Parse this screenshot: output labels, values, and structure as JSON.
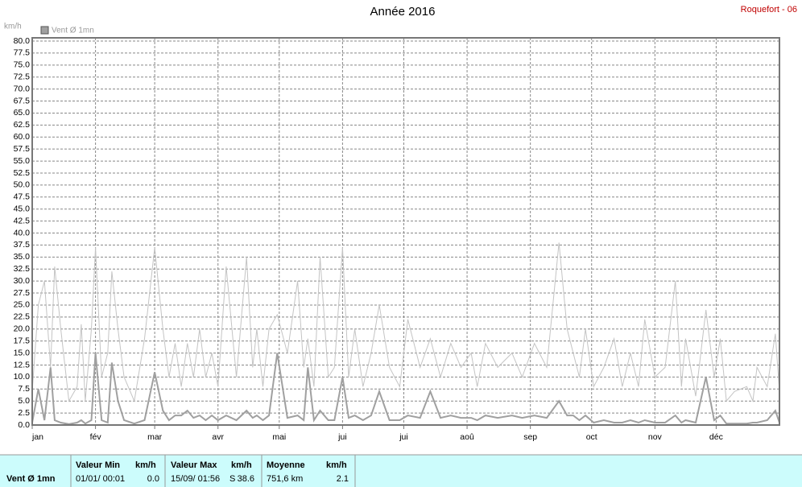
{
  "chart_data": {
    "type": "line",
    "title": "Année 2016",
    "station": "Roquefort - 06",
    "y_unit": "km/h",
    "xlim": [
      0,
      366
    ],
    "xticks": [
      {
        "value": 0,
        "label": "jan"
      },
      {
        "value": 31,
        "label": "fév"
      },
      {
        "value": 60,
        "label": "mar"
      },
      {
        "value": 91,
        "label": "avr"
      },
      {
        "value": 121,
        "label": "mai"
      },
      {
        "value": 152,
        "label": "jui"
      },
      {
        "value": 182,
        "label": "jui"
      },
      {
        "value": 213,
        "label": "aoû"
      },
      {
        "value": 244,
        "label": "sep"
      },
      {
        "value": 274,
        "label": "oct"
      },
      {
        "value": 305,
        "label": "nov"
      },
      {
        "value": 335,
        "label": "déc"
      }
    ],
    "ylim": [
      0,
      80
    ],
    "yticks": [
      {
        "value": 0,
        "label": "0.0"
      },
      {
        "value": 2.5,
        "label": "2.5"
      },
      {
        "value": 5,
        "label": "5.0"
      },
      {
        "value": 7.5,
        "label": "7.5"
      },
      {
        "value": 10,
        "label": "10.0"
      },
      {
        "value": 12.5,
        "label": "12.5"
      },
      {
        "value": 15,
        "label": "15.0"
      },
      {
        "value": 17.5,
        "label": "17.5"
      },
      {
        "value": 20,
        "label": "20.0"
      },
      {
        "value": 22.5,
        "label": "22.5"
      },
      {
        "value": 25,
        "label": "25.0"
      },
      {
        "value": 27.5,
        "label": "27.5"
      },
      {
        "value": 30,
        "label": "30.0"
      },
      {
        "value": 32.5,
        "label": "32.5"
      },
      {
        "value": 35,
        "label": "35.0"
      },
      {
        "value": 37.5,
        "label": "37.5"
      },
      {
        "value": 40,
        "label": "40.0"
      },
      {
        "value": 42.5,
        "label": "42.5"
      },
      {
        "value": 45,
        "label": "45.0"
      },
      {
        "value": 47.5,
        "label": "47.5"
      },
      {
        "value": 50,
        "label": "50.0"
      },
      {
        "value": 52.5,
        "label": "52.5"
      },
      {
        "value": 55,
        "label": "55.0"
      },
      {
        "value": 57.5,
        "label": "57.5"
      },
      {
        "value": 60,
        "label": "60.0"
      },
      {
        "value": 62.5,
        "label": "62.5"
      },
      {
        "value": 65,
        "label": "65.0"
      },
      {
        "value": 67.5,
        "label": "67.5"
      },
      {
        "value": 70,
        "label": "70.0"
      },
      {
        "value": 72.5,
        "label": "72.5"
      },
      {
        "value": 75,
        "label": "75.0"
      },
      {
        "value": 77.5,
        "label": "77.5"
      },
      {
        "value": 80,
        "label": "80.0"
      }
    ],
    "grid": true,
    "x": [
      0,
      3,
      6,
      9,
      11,
      14,
      18,
      22,
      24,
      26,
      29,
      31,
      34,
      37,
      39,
      42,
      45,
      50,
      55,
      60,
      64,
      67,
      70,
      73,
      76,
      79,
      82,
      85,
      88,
      91,
      95,
      100,
      105,
      108,
      110,
      113,
      116,
      120,
      125,
      130,
      133,
      135,
      138,
      141,
      145,
      148,
      152,
      155,
      158,
      162,
      166,
      170,
      175,
      180,
      184,
      190,
      195,
      200,
      205,
      210,
      215,
      218,
      222,
      228,
      235,
      240,
      246,
      252,
      258,
      262,
      265,
      268,
      271,
      275,
      280,
      285,
      289,
      293,
      297,
      300,
      305,
      310,
      315,
      318,
      320,
      325,
      330,
      334,
      337,
      340,
      344,
      350,
      353,
      355,
      360,
      364,
      366
    ],
    "series": [
      {
        "color": "#c4c4c4",
        "values": [
          7,
          25,
          30,
          12,
          33,
          20,
          5,
          8,
          21,
          5,
          20,
          37,
          10,
          15,
          32,
          20,
          10,
          5,
          18,
          37,
          20,
          10,
          17,
          8,
          17,
          10,
          20,
          10,
          15,
          8,
          33,
          10,
          35,
          12,
          20,
          8,
          20,
          23,
          15,
          30,
          12,
          18,
          8,
          35,
          10,
          12,
          37,
          10,
          20,
          8,
          15,
          25,
          12,
          8,
          22,
          12,
          18,
          10,
          17,
          12,
          15,
          8,
          17,
          12,
          15,
          10,
          17,
          12,
          38,
          20,
          15,
          10,
          20,
          8,
          12,
          18,
          8,
          15,
          8,
          22,
          10,
          12,
          30,
          8,
          18,
          6,
          24,
          10,
          18,
          5,
          7,
          8,
          5,
          12,
          8,
          19,
          7
        ]
      },
      {
        "name": "Vent Ø 1mn",
        "color": "#a0a0a0",
        "values": [
          0.5,
          7.5,
          1,
          12,
          1,
          0.5,
          0.2,
          0.5,
          1,
          0.3,
          1,
          15,
          1,
          0.5,
          13,
          5,
          1,
          0.3,
          1,
          11,
          3,
          1,
          2,
          2,
          3,
          1.5,
          2,
          1,
          2,
          1,
          2,
          1,
          3,
          1.5,
          2,
          1,
          2,
          15,
          1.5,
          2,
          1,
          12,
          1,
          3,
          1,
          1,
          10,
          1.5,
          2,
          1,
          2,
          7,
          1,
          1,
          2,
          1.5,
          7,
          1.5,
          2,
          1.5,
          1.5,
          1,
          2,
          1.5,
          2,
          1.5,
          2,
          1.5,
          5,
          2,
          2,
          1,
          2,
          0.5,
          1,
          0.5,
          0.5,
          1,
          0.5,
          1,
          0.5,
          0.5,
          2,
          0.5,
          1,
          0.5,
          10,
          1,
          2,
          0.3,
          0.3,
          0.3,
          0.5,
          0.5,
          1,
          3,
          0.5
        ]
      }
    ]
  },
  "stats": {
    "label": "Vent Ø 1mn",
    "min": {
      "header": "Valeur Min",
      "unit": "km/h",
      "date": "01/01/ 00:01",
      "value": "0.0"
    },
    "max": {
      "header": "Valeur Max",
      "unit": "km/h",
      "date": "15/09/ 01:56",
      "direction": "S",
      "value": "38.6"
    },
    "mean": {
      "header": "Moyenne",
      "unit": "km/h",
      "distance": "751,6 km",
      "value": "2.1"
    }
  }
}
